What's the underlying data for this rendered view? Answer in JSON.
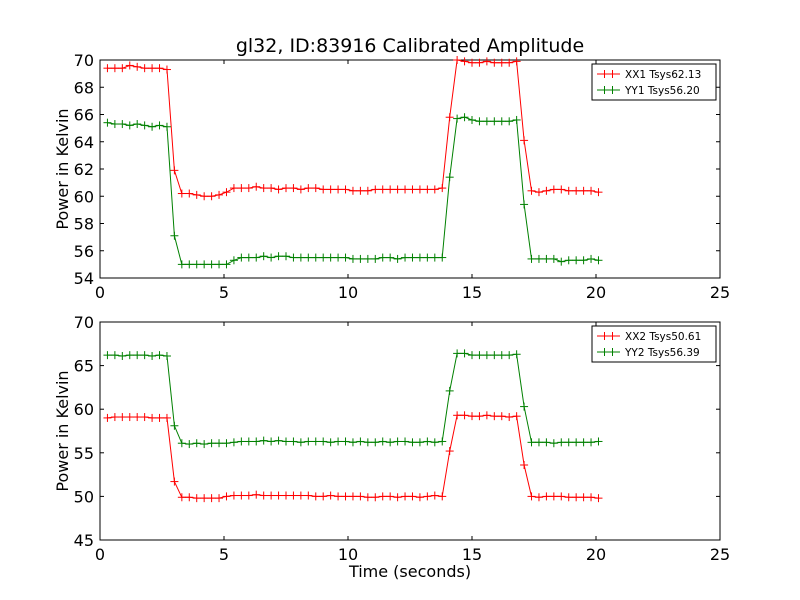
{
  "figure": {
    "title": "gl32, ID:83916 Calibrated Amplitude"
  },
  "chart_data": [
    {
      "type": "line",
      "title": "gl32, ID:83916 Calibrated Amplitude",
      "xlabel": "",
      "ylabel": "Power in Kelvin",
      "xlim": [
        0,
        25
      ],
      "ylim": [
        54,
        70
      ],
      "xticks": [
        "0",
        "5",
        "10",
        "15",
        "20",
        "25"
      ],
      "yticks": [
        "54",
        "56",
        "58",
        "60",
        "62",
        "64",
        "66",
        "68",
        "70"
      ],
      "grid": false,
      "legend": "top-right",
      "x": [
        0.3,
        0.6,
        0.9,
        1.2,
        1.5,
        1.8,
        2.1,
        2.4,
        2.7,
        3.0,
        3.3,
        3.6,
        3.9,
        4.2,
        4.5,
        4.8,
        5.1,
        5.4,
        5.7,
        6.0,
        6.3,
        6.6,
        6.9,
        7.2,
        7.5,
        7.8,
        8.1,
        8.4,
        8.7,
        9.0,
        9.3,
        9.6,
        9.9,
        10.2,
        10.5,
        10.8,
        11.1,
        11.4,
        11.7,
        12.0,
        12.3,
        12.6,
        12.9,
        13.2,
        13.5,
        13.8,
        14.1,
        14.4,
        14.7,
        15.0,
        15.3,
        15.6,
        15.9,
        16.2,
        16.5,
        16.8,
        17.1,
        17.4,
        17.7,
        18.0,
        18.3,
        18.6,
        18.9,
        19.2,
        19.5,
        19.8,
        20.1
      ],
      "series": [
        {
          "name": "XX1 Tsys62.13",
          "color": "#ff0000",
          "values": [
            69.4,
            69.4,
            69.4,
            69.6,
            69.5,
            69.4,
            69.4,
            69.4,
            69.3,
            61.9,
            60.2,
            60.2,
            60.1,
            60.0,
            60.0,
            60.1,
            60.3,
            60.6,
            60.6,
            60.6,
            60.7,
            60.6,
            60.6,
            60.5,
            60.6,
            60.6,
            60.5,
            60.6,
            60.6,
            60.5,
            60.5,
            60.5,
            60.5,
            60.4,
            60.4,
            60.4,
            60.5,
            60.5,
            60.5,
            60.5,
            60.5,
            60.5,
            60.5,
            60.5,
            60.5,
            60.6,
            65.8,
            70.0,
            69.9,
            69.8,
            69.8,
            69.9,
            69.8,
            69.8,
            69.8,
            69.9,
            64.1,
            60.4,
            60.3,
            60.4,
            60.5,
            60.5,
            60.4,
            60.4,
            60.4,
            60.4,
            60.3
          ]
        },
        {
          "name": "YY1 Tsys56.20",
          "color": "#008000",
          "values": [
            65.4,
            65.3,
            65.3,
            65.2,
            65.3,
            65.2,
            65.1,
            65.2,
            65.1,
            57.1,
            55.0,
            55.0,
            55.0,
            55.0,
            55.0,
            55.0,
            55.0,
            55.3,
            55.5,
            55.5,
            55.5,
            55.6,
            55.5,
            55.6,
            55.6,
            55.5,
            55.5,
            55.5,
            55.5,
            55.5,
            55.5,
            55.5,
            55.5,
            55.4,
            55.4,
            55.4,
            55.4,
            55.5,
            55.5,
            55.4,
            55.5,
            55.5,
            55.5,
            55.5,
            55.5,
            55.5,
            61.4,
            65.7,
            65.8,
            65.6,
            65.5,
            65.5,
            65.5,
            65.5,
            65.5,
            65.6,
            59.4,
            55.4,
            55.4,
            55.4,
            55.4,
            55.2,
            55.3,
            55.3,
            55.3,
            55.4,
            55.3
          ]
        }
      ]
    },
    {
      "type": "line",
      "title": "",
      "xlabel": "Time (seconds)",
      "ylabel": "Power in Kelvin",
      "xlim": [
        0,
        25
      ],
      "ylim": [
        45,
        70
      ],
      "xticks": [
        "0",
        "5",
        "10",
        "15",
        "20",
        "25"
      ],
      "yticks": [
        "45",
        "50",
        "55",
        "60",
        "65",
        "70"
      ],
      "grid": false,
      "legend": "top-right",
      "x": [
        0.3,
        0.6,
        0.9,
        1.2,
        1.5,
        1.8,
        2.1,
        2.4,
        2.7,
        3.0,
        3.3,
        3.6,
        3.9,
        4.2,
        4.5,
        4.8,
        5.1,
        5.4,
        5.7,
        6.0,
        6.3,
        6.6,
        6.9,
        7.2,
        7.5,
        7.8,
        8.1,
        8.4,
        8.7,
        9.0,
        9.3,
        9.6,
        9.9,
        10.2,
        10.5,
        10.8,
        11.1,
        11.4,
        11.7,
        12.0,
        12.3,
        12.6,
        12.9,
        13.2,
        13.5,
        13.8,
        14.1,
        14.4,
        14.7,
        15.0,
        15.3,
        15.6,
        15.9,
        16.2,
        16.5,
        16.8,
        17.1,
        17.4,
        17.7,
        18.0,
        18.3,
        18.6,
        18.9,
        19.2,
        19.5,
        19.8,
        20.1
      ],
      "series": [
        {
          "name": "XX2 Tsys50.61",
          "color": "#ff0000",
          "values": [
            59.0,
            59.1,
            59.1,
            59.1,
            59.1,
            59.1,
            59.0,
            59.0,
            59.0,
            51.7,
            49.9,
            49.9,
            49.8,
            49.8,
            49.8,
            49.8,
            50.0,
            50.1,
            50.1,
            50.1,
            50.2,
            50.1,
            50.1,
            50.1,
            50.1,
            50.1,
            50.1,
            50.1,
            50.0,
            50.0,
            50.1,
            50.0,
            50.0,
            50.0,
            50.0,
            49.9,
            49.9,
            50.0,
            50.0,
            49.9,
            50.0,
            50.0,
            49.9,
            50.0,
            50.1,
            50.0,
            55.2,
            59.3,
            59.3,
            59.2,
            59.2,
            59.3,
            59.2,
            59.2,
            59.1,
            59.2,
            53.6,
            50.0,
            49.9,
            50.0,
            50.0,
            50.0,
            49.9,
            49.9,
            49.9,
            49.9,
            49.8
          ]
        },
        {
          "name": "YY2 Tsys56.39",
          "color": "#008000",
          "values": [
            66.2,
            66.2,
            66.1,
            66.2,
            66.2,
            66.2,
            66.1,
            66.2,
            66.1,
            58.1,
            56.1,
            56.0,
            56.1,
            56.0,
            56.1,
            56.1,
            56.1,
            56.2,
            56.3,
            56.3,
            56.3,
            56.4,
            56.3,
            56.4,
            56.3,
            56.3,
            56.2,
            56.3,
            56.3,
            56.3,
            56.2,
            56.3,
            56.3,
            56.2,
            56.3,
            56.2,
            56.2,
            56.3,
            56.2,
            56.3,
            56.3,
            56.2,
            56.2,
            56.3,
            56.2,
            56.3,
            62.1,
            66.4,
            66.4,
            66.2,
            66.2,
            66.2,
            66.2,
            66.2,
            66.2,
            66.3,
            60.3,
            56.2,
            56.2,
            56.2,
            56.1,
            56.2,
            56.2,
            56.2,
            56.2,
            56.2,
            56.3
          ]
        }
      ]
    }
  ]
}
